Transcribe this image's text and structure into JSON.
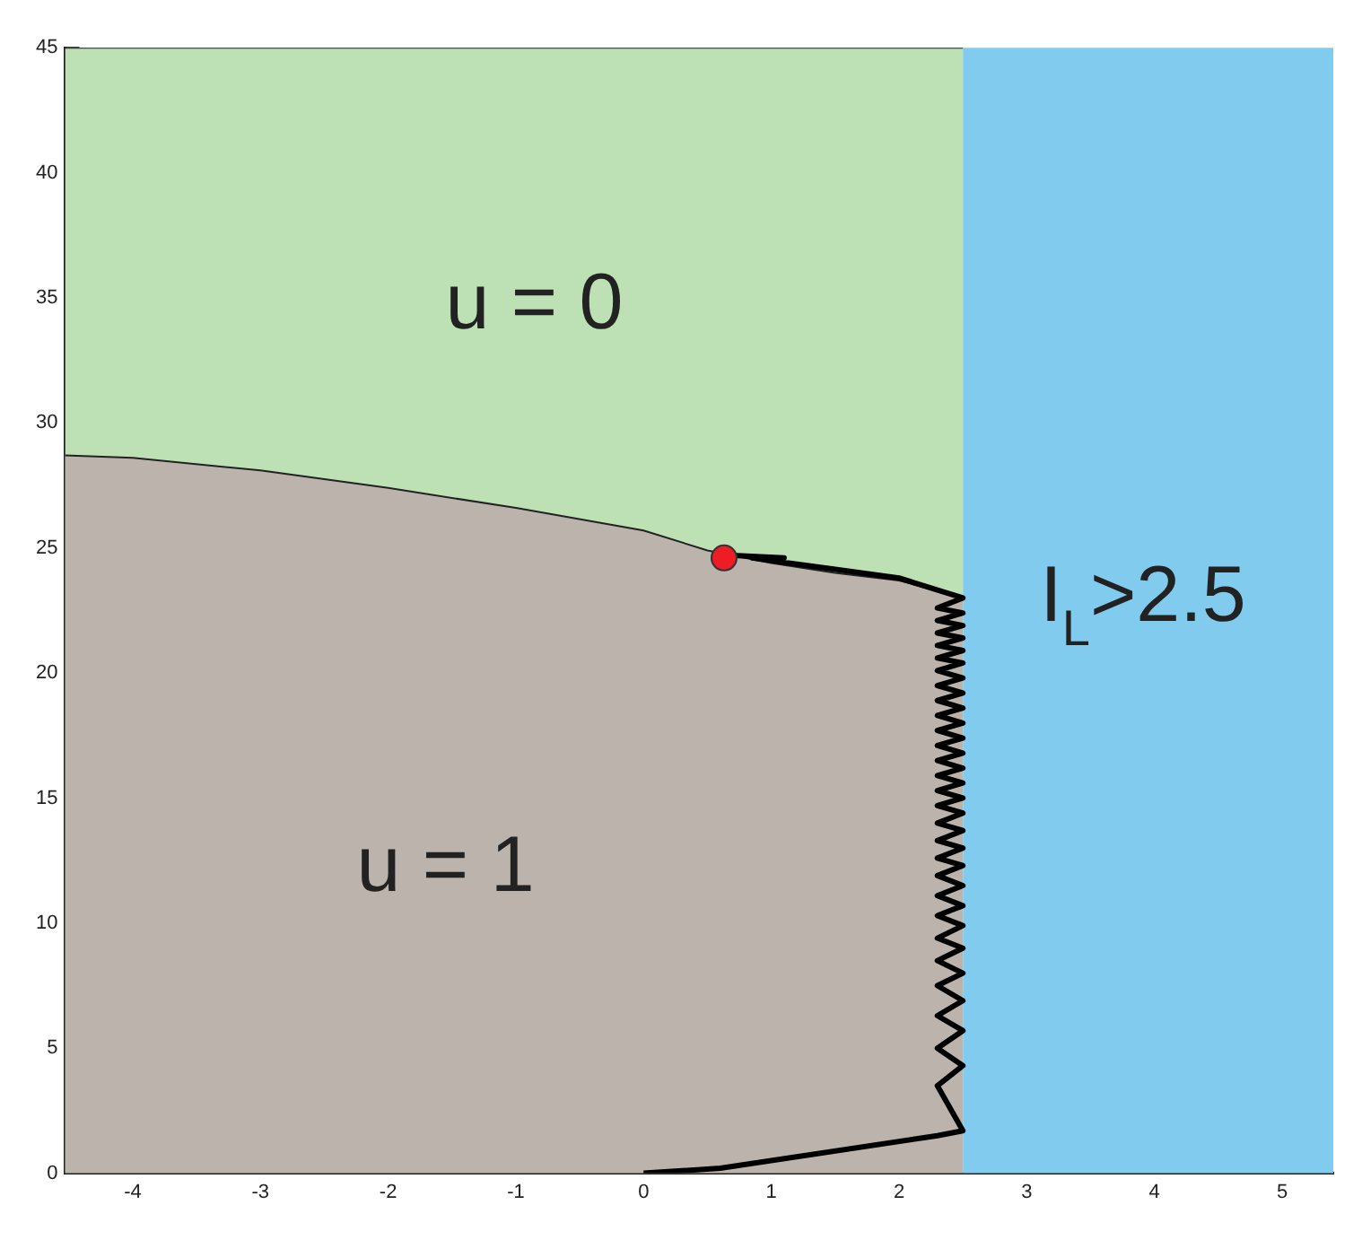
{
  "chart_data": {
    "type": "line",
    "xlim": [
      -4.53,
      5.4
    ],
    "ylim": [
      0,
      45
    ],
    "xticks": [
      -4,
      -3,
      -2,
      -1,
      0,
      1,
      2,
      3,
      4,
      5
    ],
    "yticks": [
      0,
      5,
      10,
      15,
      20,
      25,
      30,
      35,
      40,
      45
    ],
    "grid": false,
    "legend": false,
    "marker": "none",
    "series": [
      {
        "type": "area",
        "color": "#bde0b5",
        "x": [
          -4.53,
          2.5
        ],
        "values": [
          45,
          45
        ]
      },
      {
        "type": "area",
        "color": "#bcb4ac",
        "x": [
          -4.53,
          -4,
          -3,
          -2,
          -1,
          0,
          0.5,
          1,
          1.5,
          2,
          2.5
        ],
        "values": [
          28.7,
          28.6,
          28.1,
          27.4,
          26.6,
          25.7,
          24.9,
          24.4,
          24.0,
          23.7,
          23.0
        ]
      },
      {
        "color": "#000000",
        "x": [
          0,
          0.6,
          2.3,
          2.5,
          2.3,
          2.5,
          2.3,
          2.5,
          2.3,
          2.5,
          2.3,
          2.5,
          2.3,
          2.5,
          2.3,
          2.5,
          2.3,
          2.5,
          2.3,
          2.5,
          2.3,
          2.5,
          2.3,
          2.5,
          2.3,
          2.5,
          2.3,
          2.5,
          2.3,
          2.5,
          2.3,
          2.5,
          2.3,
          2.5,
          2.3,
          2.5,
          2.3,
          2.5,
          2.3,
          2.5,
          2.3,
          2.5,
          2.3,
          2.5,
          2.3,
          2.5,
          2.3,
          2.5,
          2.3,
          2.5,
          2.3,
          2.5,
          2.3,
          2.5,
          2.3,
          2.5,
          2.3,
          2.5,
          2,
          1.5,
          1.2,
          0.85,
          1.1,
          0.7,
          0.63
        ],
        "values": [
          0,
          0.2,
          1.5,
          1.7,
          3.5,
          4.3,
          5.0,
          5.7,
          6.3,
          6.9,
          7.5,
          8.0,
          8.5,
          9.0,
          9.4,
          9.9,
          10.3,
          10.7,
          11.1,
          11.5,
          11.9,
          12.3,
          12.6,
          13.0,
          13.3,
          13.7,
          14.0,
          14.4,
          14.7,
          15.0,
          15.3,
          15.6,
          15.9,
          16.2,
          16.5,
          16.8,
          17.1,
          17.4,
          17.7,
          18.0,
          18.3,
          18.6,
          18.9,
          19.2,
          19.5,
          19.8,
          20.1,
          20.4,
          20.6,
          20.9,
          21.1,
          21.4,
          21.6,
          21.9,
          22.1,
          22.4,
          22.6,
          23.0,
          23.8,
          24.15,
          24.35,
          24.6,
          24.6,
          24.7,
          24.6
        ]
      },
      {
        "type": "scatter",
        "color": "#ee1c25",
        "marker": "circle",
        "x": [
          0.63
        ],
        "values": [
          24.6
        ]
      }
    ],
    "bands": [
      {
        "axis": "x",
        "from": 2.5,
        "to": 5.4,
        "color": "#80cbee"
      }
    ],
    "annotations": [
      "u = 0",
      "u = 1",
      "I$_{L}$>2.5"
    ]
  }
}
